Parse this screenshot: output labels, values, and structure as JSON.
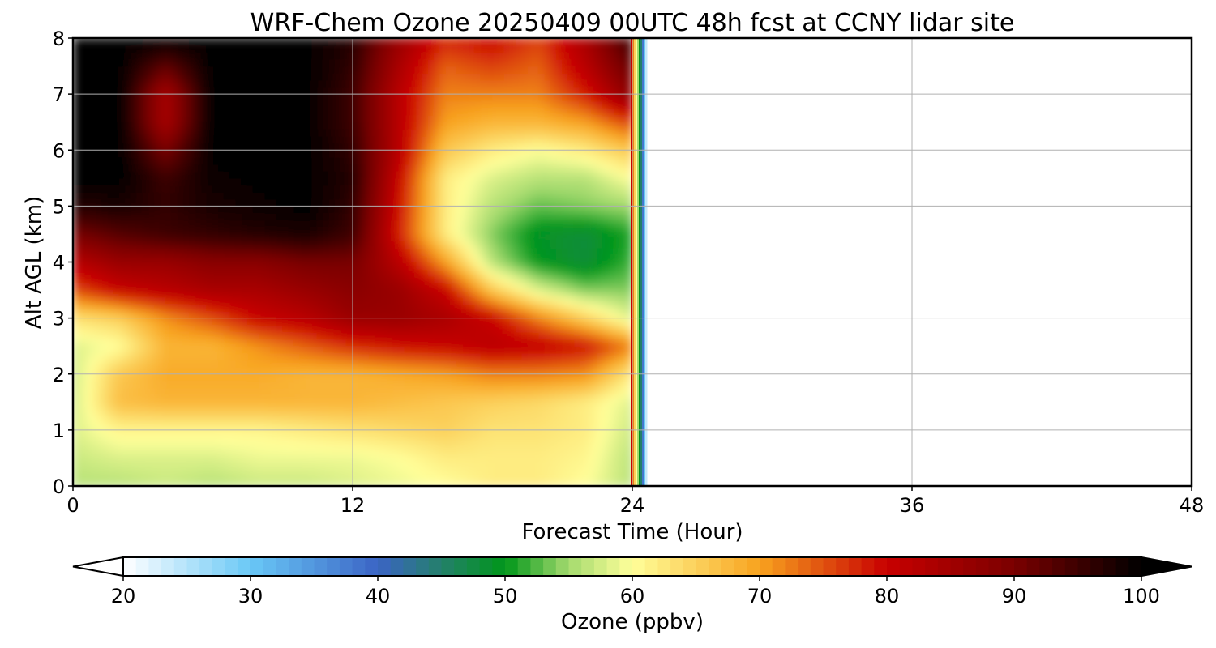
{
  "chart_data": {
    "type": "heatmap",
    "title": "WRF-Chem Ozone  20250409 00UTC 48h fcst at CCNY lidar site",
    "xlabel": "Forecast Time (Hour)",
    "ylabel": "Alt AGL (km)",
    "xlim": [
      0,
      48
    ],
    "ylim": [
      0,
      8
    ],
    "xticks": [
      0,
      12,
      24,
      36,
      48
    ],
    "yticks": [
      0,
      1,
      2,
      3,
      4,
      5,
      6,
      7,
      8
    ],
    "grid": true,
    "data_extent_hours": [
      0,
      24.5
    ],
    "colorbar": {
      "label": "Ozone  (ppbv)",
      "min": 20,
      "max": 100,
      "ticks": [
        20,
        30,
        40,
        50,
        60,
        70,
        80,
        90,
        100
      ],
      "extend": "both",
      "orientation": "horizontal",
      "colormap_stops": [
        {
          "value": 20,
          "color": "#ffffff"
        },
        {
          "value": 30,
          "color": "#69c8f6"
        },
        {
          "value": 40,
          "color": "#3b64c4"
        },
        {
          "value": 45,
          "color": "#24806a"
        },
        {
          "value": 50,
          "color": "#00961a"
        },
        {
          "value": 55,
          "color": "#a4da6e"
        },
        {
          "value": 60,
          "color": "#ffff9a"
        },
        {
          "value": 70,
          "color": "#f8a21e"
        },
        {
          "value": 80,
          "color": "#c80000"
        },
        {
          "value": 90,
          "color": "#7a0000"
        },
        {
          "value": 100,
          "color": "#000000"
        }
      ]
    },
    "field": {
      "x_hours": [
        0,
        2,
        4,
        6,
        8,
        10,
        12,
        14,
        16,
        18,
        20,
        22,
        24
      ],
      "z_km": [
        0,
        0.5,
        1,
        1.5,
        2,
        2.5,
        3,
        3.5,
        4,
        4.5,
        5,
        5.5,
        6,
        6.5,
        7,
        7.5,
        8
      ],
      "ozone_ppbv": [
        [
          56,
          56,
          57,
          56,
          57,
          57,
          58,
          59,
          60,
          62,
          62,
          60,
          56
        ],
        [
          57,
          58,
          58,
          58,
          59,
          59,
          59,
          60,
          62,
          62,
          62,
          61,
          56
        ],
        [
          58,
          61,
          61,
          61,
          61,
          62,
          63,
          64,
          65,
          63,
          63,
          62,
          57
        ],
        [
          57,
          67,
          68,
          68,
          68,
          68,
          68,
          67,
          66,
          65,
          64,
          62,
          58
        ],
        [
          57,
          66,
          69,
          69,
          69,
          68,
          68,
          69,
          70,
          72,
          72,
          71,
          62
        ],
        [
          58,
          60,
          68,
          68,
          71,
          74,
          77,
          79,
          80,
          82,
          81,
          79,
          72
        ],
        [
          63,
          65,
          71,
          75,
          80,
          82,
          86,
          86,
          84,
          80,
          72,
          65,
          58
        ],
        [
          75,
          80,
          82,
          84,
          84,
          86,
          88,
          86,
          80,
          66,
          58,
          54,
          54
        ],
        [
          82,
          86,
          86,
          88,
          88,
          90,
          90,
          82,
          70,
          56,
          50,
          48,
          52
        ],
        [
          90,
          93,
          95,
          96,
          97,
          98,
          95,
          78,
          62,
          54,
          49,
          48,
          51
        ],
        [
          97,
          98,
          96,
          98,
          99,
          100,
          96,
          79,
          62,
          56,
          53,
          54,
          55
        ],
        [
          100,
          100,
          95,
          99,
          100,
          100,
          97,
          80,
          62,
          58,
          56,
          56,
          60
        ],
        [
          100,
          100,
          90,
          100,
          100,
          100,
          96,
          82,
          66,
          62,
          60,
          62,
          66
        ],
        [
          100,
          100,
          84,
          100,
          100,
          100,
          95,
          82,
          70,
          68,
          68,
          70,
          76
        ],
        [
          100,
          100,
          84,
          100,
          100,
          100,
          95,
          82,
          72,
          72,
          72,
          78,
          88
        ],
        [
          100,
          100,
          92,
          100,
          100,
          100,
          96,
          84,
          74,
          76,
          74,
          82,
          92
        ],
        [
          100,
          100,
          100,
          100,
          100,
          100,
          97,
          86,
          78,
          80,
          76,
          84,
          96
        ]
      ]
    }
  }
}
